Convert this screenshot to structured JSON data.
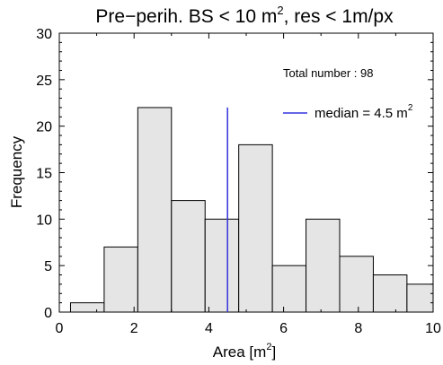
{
  "chart_data": {
    "type": "bar",
    "title_main": "Pre−perih. BS < 10 m",
    "title_sup": "2",
    "title_tail": ", res < 1m/px",
    "xlabel_main": "Area [m",
    "xlabel_sup": "2",
    "xlabel_tail": "]",
    "ylabel": "Frequency",
    "xlim": [
      0,
      10
    ],
    "ylim": [
      0,
      30
    ],
    "x_ticks": [
      0,
      2,
      4,
      6,
      8,
      10
    ],
    "y_ticks": [
      0,
      5,
      10,
      15,
      20,
      25,
      30
    ],
    "bins": [
      {
        "from": 0.3,
        "to": 1.2,
        "count": 1
      },
      {
        "from": 1.2,
        "to": 2.1,
        "count": 7
      },
      {
        "from": 2.1,
        "to": 3.0,
        "count": 22
      },
      {
        "from": 3.0,
        "to": 3.9,
        "count": 12
      },
      {
        "from": 3.9,
        "to": 4.8,
        "count": 10
      },
      {
        "from": 4.8,
        "to": 5.7,
        "count": 18
      },
      {
        "from": 5.7,
        "to": 6.6,
        "count": 5
      },
      {
        "from": 6.6,
        "to": 7.5,
        "count": 10
      },
      {
        "from": 7.5,
        "to": 8.4,
        "count": 6
      },
      {
        "from": 8.4,
        "to": 9.3,
        "count": 4
      },
      {
        "from": 9.3,
        "to": 10.0,
        "count": 3
      }
    ],
    "median": 4.5,
    "total_label": "Total number : 98",
    "legend_main": "median = 4.5 m",
    "legend_sup": "2",
    "bar_color": "#e5e5e5",
    "median_color": "#3333dd"
  }
}
